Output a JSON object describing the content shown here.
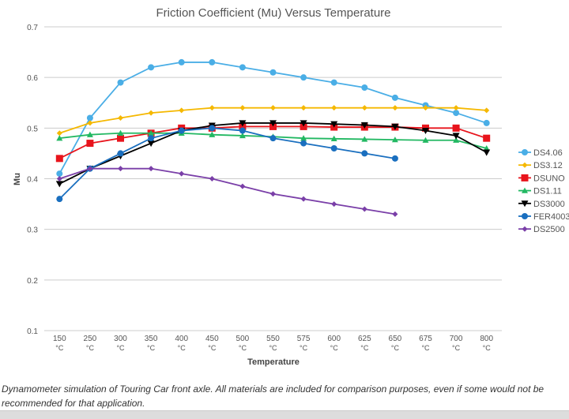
{
  "chart_data": {
    "type": "line",
    "title": "Friction Coefficient (Mu) Versus Temperature",
    "xlabel": "Temperature",
    "ylabel": "Mu",
    "ylim": [
      0.1,
      0.7
    ],
    "yticks": [
      "0.1",
      "0.2",
      "0.3",
      "0.4",
      "0.5",
      "0.6",
      "0.7"
    ],
    "grid": true,
    "legend": "right",
    "categories": [
      "150",
      "250",
      "300",
      "350",
      "400",
      "450",
      "500",
      "550",
      "575",
      "600",
      "625",
      "650",
      "675",
      "700",
      "800"
    ],
    "unit": "°C",
    "series": [
      {
        "name": "DS4.06",
        "color": "#4aaee6",
        "marker": "circle",
        "values": [
          0.41,
          0.52,
          0.59,
          0.62,
          0.63,
          0.63,
          0.62,
          0.61,
          0.6,
          0.59,
          0.58,
          0.56,
          0.545,
          0.53,
          0.51
        ]
      },
      {
        "name": "DS3.12",
        "color": "#f5b800",
        "marker": "diamond",
        "values": [
          0.49,
          0.51,
          0.52,
          0.53,
          0.535,
          0.54,
          0.54,
          0.54,
          0.54,
          0.54,
          0.54,
          0.54,
          0.54,
          0.54,
          0.535
        ]
      },
      {
        "name": "DSUNO",
        "color": "#e8141c",
        "marker": "square",
        "values": [
          0.44,
          0.47,
          0.48,
          0.49,
          0.5,
          0.5,
          0.503,
          0.503,
          0.503,
          0.502,
          0.502,
          0.502,
          0.5,
          0.5,
          0.48
        ]
      },
      {
        "name": "DS1.11",
        "color": "#22b862",
        "marker": "triangle",
        "values": [
          0.48,
          0.487,
          0.49,
          0.49,
          0.49,
          0.487,
          0.485,
          0.483,
          0.48,
          0.479,
          0.478,
          0.477,
          0.476,
          0.476,
          0.46
        ]
      },
      {
        "name": "DS3000",
        "color": "#000000",
        "marker": "triangle-down",
        "values": [
          0.39,
          0.42,
          0.445,
          0.47,
          0.495,
          0.505,
          0.51,
          0.51,
          0.51,
          0.508,
          0.506,
          0.503,
          0.495,
          0.485,
          0.452
        ]
      },
      {
        "name": "FER4003",
        "color": "#1a6fbf",
        "marker": "circle",
        "values": [
          0.36,
          0.42,
          0.45,
          0.48,
          0.495,
          0.5,
          0.495,
          0.48,
          0.47,
          0.46,
          0.45,
          0.44,
          null,
          null,
          null
        ]
      },
      {
        "name": "DS2500",
        "color": "#7a3fa8",
        "marker": "diamond",
        "values": [
          0.4,
          0.42,
          0.42,
          0.42,
          0.41,
          0.4,
          0.385,
          0.37,
          0.36,
          0.35,
          0.34,
          0.33,
          null,
          null,
          null
        ]
      }
    ]
  },
  "caption": "Dynamometer simulation of Touring Car front axle. All materials are included for comparison purposes, even if some would not be recommended for that application."
}
